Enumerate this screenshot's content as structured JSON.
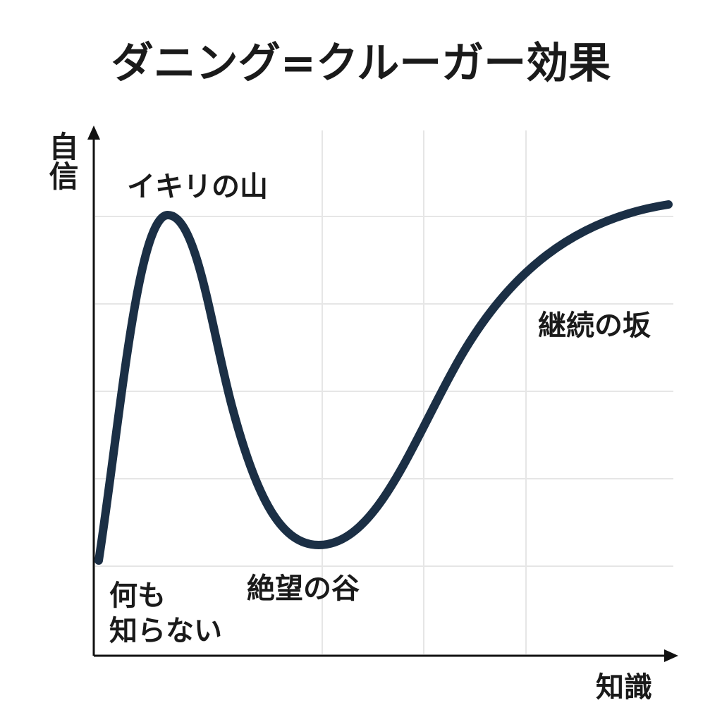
{
  "title": "ダニング=クルーガー効果",
  "axes": {
    "y_label": "自信",
    "x_label": "知識"
  },
  "annotations": {
    "start": [
      "何も",
      "知らない"
    ],
    "peak": "イキリの山",
    "valley": "絶望の谷",
    "slope": "継続の坂"
  }
}
